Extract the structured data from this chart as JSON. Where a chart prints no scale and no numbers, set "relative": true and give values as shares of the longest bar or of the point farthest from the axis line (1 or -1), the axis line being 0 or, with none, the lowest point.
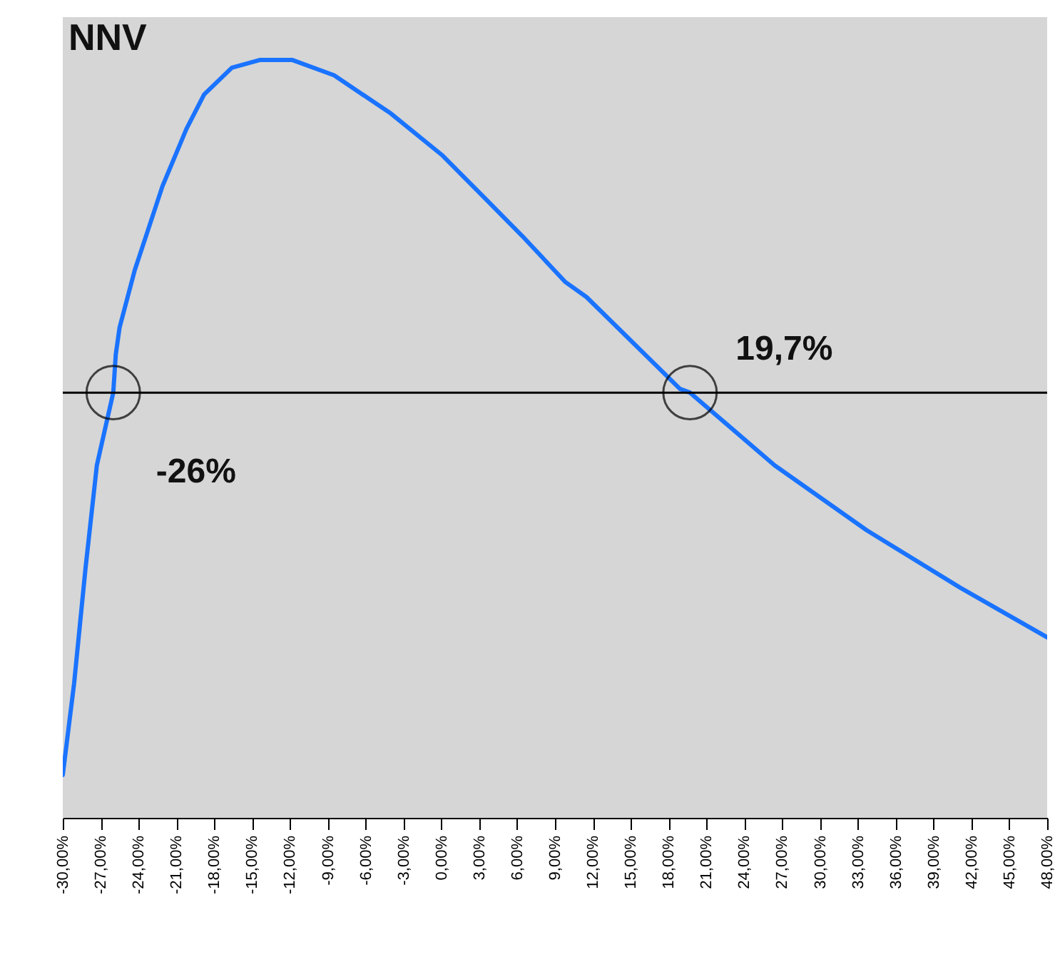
{
  "chart_data": {
    "type": "line",
    "title": "NNV",
    "relative": true,
    "x": [
      -30,
      -29.1,
      -28.2,
      -27.3,
      -26,
      -25.8,
      -25.5,
      -24.3,
      -23.2,
      -22.1,
      -20.2,
      -18.8,
      -16.6,
      -14.4,
      -11.8,
      -8.5,
      -4.0,
      0.1,
      3.4,
      6.4,
      9.8,
      11.5,
      18.9,
      19.7,
      26.4,
      33.7,
      41.1,
      48
    ],
    "series": [
      {
        "color": "#1a73ff",
        "values": [
          -1.0,
          -0.76,
          -0.46,
          -0.19,
          0,
          0.1,
          0.17,
          0.32,
          0.43,
          0.54,
          0.69,
          0.78,
          0.85,
          0.87,
          0.87,
          0.83,
          0.73,
          0.62,
          0.51,
          0.41,
          0.29,
          0.25,
          0.01,
          0,
          -0.19,
          -0.36,
          -0.51,
          -0.64
        ]
      }
    ],
    "xlim": [
      -30,
      48
    ],
    "xticks": [
      {
        "value": -30,
        "label": "-30,00%"
      },
      {
        "value": -27,
        "label": "-27,00%"
      },
      {
        "value": -24,
        "label": "-24,00%"
      },
      {
        "value": -21,
        "label": "-21,00%"
      },
      {
        "value": -18,
        "label": "-18,00%"
      },
      {
        "value": -15,
        "label": "-15,00%"
      },
      {
        "value": -12,
        "label": "-12,00%"
      },
      {
        "value": -9,
        "label": "-9,00%"
      },
      {
        "value": -6,
        "label": "-6,00%"
      },
      {
        "value": -3,
        "label": "-3,00%"
      },
      {
        "value": 0,
        "label": "0,00%"
      },
      {
        "value": 3,
        "label": "3,00%"
      },
      {
        "value": 6,
        "label": "6,00%"
      },
      {
        "value": 9,
        "label": "9,00%"
      },
      {
        "value": 12,
        "label": "12,00%"
      },
      {
        "value": 15,
        "label": "15,00%"
      },
      {
        "value": 18,
        "label": "18,00%"
      },
      {
        "value": 21,
        "label": "21,00%"
      },
      {
        "value": 24,
        "label": "24,00%"
      },
      {
        "value": 27,
        "label": "27,00%"
      },
      {
        "value": 30,
        "label": "30,00%"
      },
      {
        "value": 33,
        "label": "33,00%"
      },
      {
        "value": 36,
        "label": "36,00%"
      },
      {
        "value": 39,
        "label": "39,00%"
      },
      {
        "value": 42,
        "label": "42,00%"
      },
      {
        "value": 45,
        "label": "45,00%"
      },
      {
        "value": 48,
        "label": "48,00%"
      }
    ],
    "annotations": [
      {
        "text": "-26%",
        "x": -26,
        "y": 0
      },
      {
        "text": "19,7%",
        "x": 19.7,
        "y": 0
      }
    ],
    "grid": false,
    "marker": "none",
    "line_style": "solid"
  }
}
